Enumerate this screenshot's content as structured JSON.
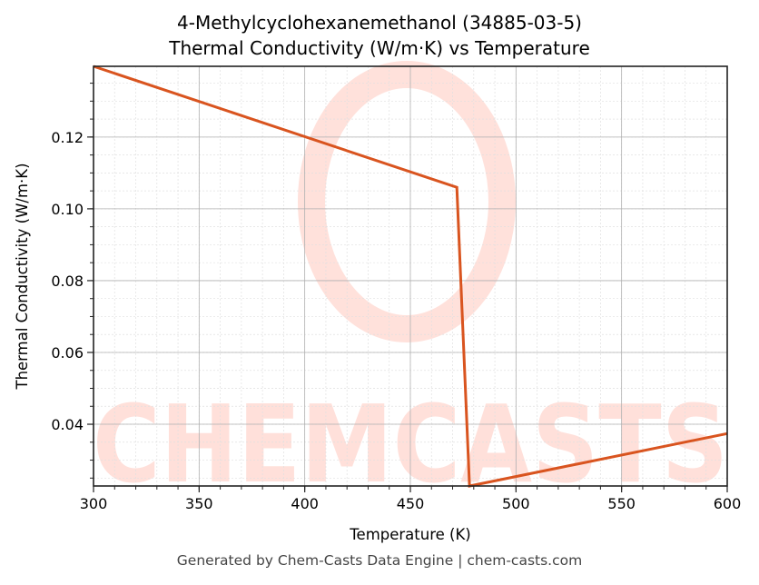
{
  "title_line1": "4-Methylcyclohexanemethanol (34885-03-5)",
  "title_line2": "Thermal Conductivity (W/m·K) vs Temperature",
  "footer": "Generated by Chem-Casts Data Engine | chem-casts.com",
  "watermark": "CHEMCASTS",
  "colors": {
    "line": "#d9541f",
    "watermark": "#ffd9d2",
    "grid_major": "#b0b0b0",
    "grid_minor": "#e0e0e0"
  },
  "chart_data": {
    "type": "line",
    "title": "4-Methylcyclohexanemethanol (34885-03-5) Thermal Conductivity (W/m·K) vs Temperature",
    "xlabel": "Temperature (K)",
    "ylabel": "Thermal Conductivity (W/m·K)",
    "xlim": [
      300,
      600
    ],
    "ylim": [
      0.0228,
      0.1397
    ],
    "xticks": [
      300,
      350,
      400,
      450,
      500,
      550,
      600
    ],
    "xtick_labels": [
      "300",
      "350",
      "400",
      "450",
      "500",
      "550",
      "600"
    ],
    "yticks": [
      0.04,
      0.06,
      0.08,
      0.1,
      0.12
    ],
    "ytick_labels": [
      "0.04",
      "0.06",
      "0.08",
      "0.10",
      "0.12"
    ],
    "grid": true,
    "legend": null,
    "series": [
      {
        "name": "Thermal Conductivity",
        "x": [
          300,
          472,
          478,
          600
        ],
        "y": [
          0.1397,
          0.106,
          0.0228,
          0.0374
        ]
      }
    ]
  }
}
